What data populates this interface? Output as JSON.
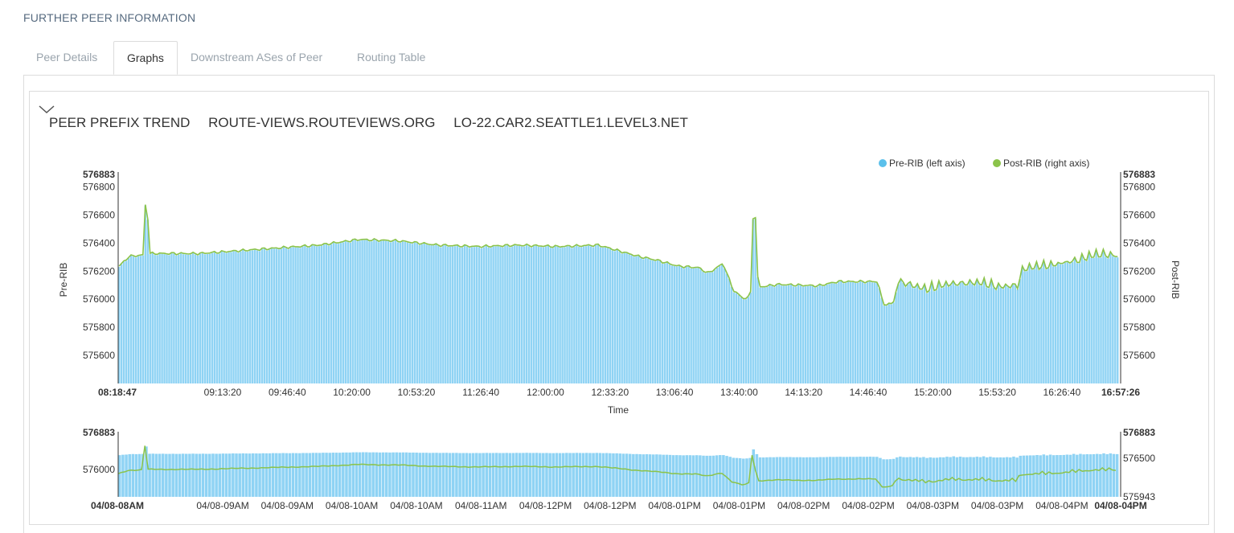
{
  "page": {
    "section_title": "FURTHER PEER INFORMATION",
    "tabs": [
      {
        "label": "Peer Details",
        "active": false
      },
      {
        "label": "Graphs",
        "active": true
      },
      {
        "label": "Downstream ASes of Peer",
        "active": false
      },
      {
        "label": "Routing Table",
        "active": false
      }
    ],
    "chart_header": {
      "title": "PEER PREFIX TREND",
      "collector": "ROUTE-VIEWS.ROUTEVIEWS.ORG",
      "peer": "LO-22.CAR2.SEATTLE1.LEVEL3.NET"
    },
    "colors": {
      "pre_rib": "#5bc0eb",
      "pre_rib_fill": "#8fd3f4",
      "post_rib": "#8bc34a"
    }
  },
  "chart_data": {
    "type": "area",
    "series": [
      {
        "name": "Pre-RIB (left axis)",
        "axis": "left"
      },
      {
        "name": "Post-RIB (right axis)",
        "axis": "right"
      }
    ],
    "main": {
      "xlabel": "Time",
      "ylabel_left": "Pre-RIB",
      "ylabel_right": "Post-RIB",
      "ylim": [
        575400,
        576883
      ],
      "y_max_label": "576883",
      "y_ticks": [
        575600,
        575800,
        576000,
        576200,
        576400,
        576600,
        576800
      ],
      "x_start_label": "08:18:47",
      "x_end_label": "16:57:26",
      "x_ticks": [
        "09:13:20",
        "09:46:40",
        "10:20:00",
        "10:53:20",
        "11:26:40",
        "12:00:00",
        "12:33:20",
        "13:06:40",
        "13:40:00",
        "14:13:20",
        "14:46:40",
        "15:20:00",
        "15:53:20",
        "16:26:40"
      ],
      "keyframes_pre_rib": [
        [
          0,
          576230
        ],
        [
          0.01,
          576300
        ],
        [
          0.025,
          576310
        ],
        [
          0.027,
          576880
        ],
        [
          0.03,
          576320
        ],
        [
          0.08,
          576320
        ],
        [
          0.12,
          576340
        ],
        [
          0.16,
          576360
        ],
        [
          0.2,
          576380
        ],
        [
          0.24,
          576420
        ],
        [
          0.28,
          576410
        ],
        [
          0.32,
          576380
        ],
        [
          0.36,
          576370
        ],
        [
          0.4,
          576380
        ],
        [
          0.44,
          576370
        ],
        [
          0.48,
          576380
        ],
        [
          0.51,
          576320
        ],
        [
          0.52,
          576300
        ],
        [
          0.54,
          576270
        ],
        [
          0.56,
          576230
        ],
        [
          0.58,
          576220
        ],
        [
          0.59,
          576180
        ],
        [
          0.605,
          576250
        ],
        [
          0.615,
          576060
        ],
        [
          0.625,
          576000
        ],
        [
          0.63,
          576010
        ],
        [
          0.633,
          576050
        ],
        [
          0.635,
          576620
        ],
        [
          0.637,
          576620
        ],
        [
          0.64,
          576080
        ],
        [
          0.66,
          576100
        ],
        [
          0.7,
          576090
        ],
        [
          0.72,
          576120
        ],
        [
          0.76,
          576120
        ],
        [
          0.765,
          575960
        ],
        [
          0.775,
          575960
        ],
        [
          0.78,
          576110
        ],
        [
          0.8,
          576070
        ],
        [
          0.81,
          576050
        ],
        [
          0.83,
          576090
        ],
        [
          0.86,
          576100
        ],
        [
          0.88,
          576070
        ],
        [
          0.9,
          576080
        ],
        [
          0.905,
          576200
        ],
        [
          0.93,
          576220
        ],
        [
          0.96,
          576260
        ],
        [
          0.98,
          576300
        ],
        [
          1.0,
          576300
        ]
      ],
      "spikes_pre_rib": {
        "from": 0.78,
        "to": 0.995,
        "period": 0.0075,
        "amplitude": 60
      }
    },
    "overview": {
      "left_tick": "576000",
      "left_top": "576883",
      "right_top": "576883",
      "right_mid": "576500",
      "right_bottom": "575943",
      "x_start_label": "04/08-08AM",
      "x_end_label": "04/08-04PM",
      "x_ticks": [
        "04/08-09AM",
        "04/08-09AM",
        "04/08-10AM",
        "04/08-10AM",
        "04/08-11AM",
        "04/08-12PM",
        "04/08-12PM",
        "04/08-01PM",
        "04/08-01PM",
        "04/08-02PM",
        "04/08-02PM",
        "04/08-03PM",
        "04/08-03PM",
        "04/08-04PM"
      ]
    }
  }
}
